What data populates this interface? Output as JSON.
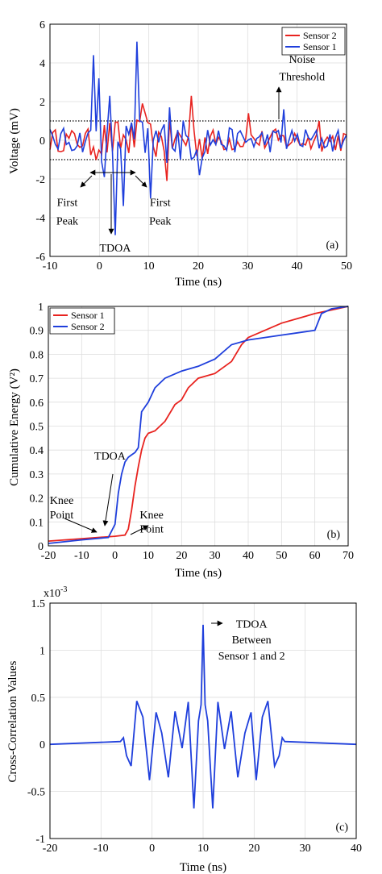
{
  "figure": {
    "panel_count": 3
  },
  "chart_data": [
    {
      "type": "line",
      "panel_label": "(a)",
      "xlabel": "Time (ns)",
      "ylabel": "Voltage (mV)",
      "xlim": [
        -10,
        50
      ],
      "ylim": [
        -6,
        6
      ],
      "xticks": [
        -10,
        0,
        10,
        20,
        30,
        40,
        50
      ],
      "yticks": [
        -6,
        -4,
        -2,
        0,
        2,
        4,
        6
      ],
      "grid": true,
      "legend_position": "top-right",
      "series": [
        {
          "name": "Sensor 2",
          "color": "#e8231f"
        },
        {
          "name": "Sensor 1",
          "color": "#1f3fdc"
        }
      ],
      "reference_lines": [
        {
          "y": 1.0,
          "style": "dotted"
        },
        {
          "y": -1.0,
          "style": "dotted"
        }
      ],
      "annotations": [
        {
          "text": "Noise",
          "x": 41,
          "y": 4.0
        },
        {
          "text": "Threshold",
          "x": 41,
          "y": 3.1
        },
        {
          "text": "First",
          "x": -6.5,
          "y": -3.4
        },
        {
          "text": "Peak",
          "x": -6.5,
          "y": -4.35
        },
        {
          "text": "First",
          "x": 12.3,
          "y": -3.4
        },
        {
          "text": "Peak",
          "x": 12.3,
          "y": -4.35
        },
        {
          "text": "TDOA",
          "x": 3.2,
          "y": -5.75
        }
      ]
    },
    {
      "type": "line",
      "panel_label": "(b)",
      "xlabel": "Time (ns)",
      "ylabel": "Cumulative Energy (V²)",
      "xlim": [
        -20,
        70
      ],
      "ylim": [
        0,
        1
      ],
      "xticks": [
        -20,
        -10,
        0,
        10,
        20,
        30,
        40,
        50,
        60,
        70
      ],
      "yticks": [
        0,
        0.1,
        0.2,
        0.3,
        0.4,
        0.5,
        0.6,
        0.7,
        0.8,
        0.9,
        1
      ],
      "grid": true,
      "legend_position": "top-left",
      "series": [
        {
          "name": "Sensor 1",
          "color": "#e8231f",
          "x": [
            -20,
            -10,
            0,
            3,
            4,
            5,
            6,
            7,
            8,
            9,
            10,
            12,
            15,
            18,
            20,
            22,
            25,
            30,
            35,
            38,
            40,
            45,
            50,
            55,
            60,
            65,
            70
          ],
          "y": [
            0.02,
            0.03,
            0.04,
            0.045,
            0.07,
            0.15,
            0.25,
            0.33,
            0.4,
            0.45,
            0.47,
            0.48,
            0.52,
            0.59,
            0.61,
            0.66,
            0.7,
            0.72,
            0.77,
            0.84,
            0.87,
            0.9,
            0.93,
            0.95,
            0.97,
            0.985,
            1.0
          ]
        },
        {
          "name": "Sensor 2",
          "color": "#1f3fdc",
          "x": [
            -20,
            -10,
            -2,
            0,
            1,
            2,
            3,
            4,
            5,
            6,
            7,
            8,
            10,
            12,
            15,
            20,
            25,
            30,
            35,
            40,
            45,
            50,
            55,
            60,
            62,
            65,
            70
          ],
          "y": [
            0.01,
            0.025,
            0.035,
            0.09,
            0.22,
            0.3,
            0.35,
            0.37,
            0.38,
            0.39,
            0.41,
            0.56,
            0.6,
            0.66,
            0.7,
            0.73,
            0.75,
            0.78,
            0.84,
            0.86,
            0.87,
            0.88,
            0.89,
            0.9,
            0.97,
            0.99,
            1.0
          ]
        }
      ],
      "annotations": [
        {
          "text": "TDOA",
          "x": -1.5,
          "y": 0.36
        },
        {
          "text": "Knee",
          "x": -16,
          "y": 0.175
        },
        {
          "text": "Point",
          "x": -16,
          "y": 0.115
        },
        {
          "text": "Knee",
          "x": 11,
          "y": 0.115
        },
        {
          "text": "Point",
          "x": 11,
          "y": 0.055
        }
      ]
    },
    {
      "type": "line",
      "panel_label": "(c)",
      "xlabel": "Time (ns)",
      "ylabel": "Cross-Correlation Values",
      "y_multiplier": "x10",
      "y_multiplier_exponent": "-3",
      "xlim": [
        -20,
        40
      ],
      "ylim": [
        -1,
        1.5
      ],
      "xticks": [
        -20,
        -10,
        0,
        10,
        20,
        30,
        40
      ],
      "yticks": [
        -1,
        -0.5,
        0,
        0.5,
        1,
        1.5
      ],
      "grid": true,
      "series": [
        {
          "color": "#1f3fdc",
          "x": [
            -20,
            -6.2,
            -5.6,
            -5.0,
            -4.1,
            -3.0,
            -1.8,
            -0.5,
            0.8,
            1.9,
            3.2,
            4.5,
            5.9,
            7.1,
            8.2,
            9.1,
            9.6,
            10.0,
            10.4,
            10.9,
            11.9,
            12.9,
            14.2,
            15.5,
            16.8,
            18.2,
            19.4,
            20.4,
            21.6,
            22.7,
            24.0,
            24.9,
            25.5,
            26.0,
            40
          ],
          "y": [
            0,
            0.03,
            0.07,
            -0.12,
            -0.23,
            0.46,
            0.29,
            -0.38,
            0.34,
            0.12,
            -0.35,
            0.35,
            -0.04,
            0.45,
            -0.68,
            0.25,
            0.42,
            1.27,
            0.42,
            0.25,
            -0.68,
            0.45,
            -0.05,
            0.35,
            -0.35,
            0.12,
            0.34,
            -0.38,
            0.29,
            0.46,
            -0.23,
            -0.12,
            0.07,
            0.03,
            0
          ]
        }
      ],
      "annotations": [
        {
          "text": "TDOA",
          "x": 19.5,
          "y": 1.24
        },
        {
          "text": "Between",
          "x": 19.5,
          "y": 1.07
        },
        {
          "text": "Sensor 1 and 2",
          "x": 19.5,
          "y": 0.9
        }
      ]
    }
  ]
}
